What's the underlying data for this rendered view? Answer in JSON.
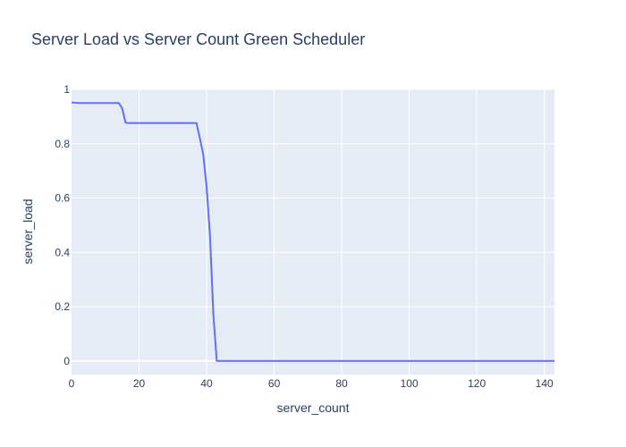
{
  "chart_data": {
    "type": "line",
    "title": "Server Load vs Server Count Green Scheduler",
    "xlabel": "server_count",
    "ylabel": "server_load",
    "xlim": [
      0,
      143
    ],
    "ylim": [
      -0.05,
      1.0
    ],
    "x_ticks": [
      0,
      20,
      40,
      60,
      80,
      100,
      120,
      140
    ],
    "x_tick_labels": [
      "0",
      "20",
      "40",
      "60",
      "80",
      "100",
      "120",
      "140"
    ],
    "y_ticks": [
      0,
      0.2,
      0.4,
      0.6,
      0.8,
      1
    ],
    "y_tick_labels": [
      "0",
      "0.2",
      "0.4",
      "0.6",
      "0.8",
      "1"
    ],
    "grid": true,
    "colors": {
      "plot_bg": "#e5ecf6",
      "grid": "#ffffff",
      "line": "#636efa",
      "text": "#2a3f5f"
    },
    "series": [
      {
        "x": [
          0,
          2,
          4,
          6,
          8,
          10,
          12,
          14,
          15,
          16,
          17,
          18,
          20,
          25,
          30,
          35,
          37,
          38,
          39,
          40,
          41,
          42,
          43,
          44,
          50,
          60,
          80,
          100,
          120,
          143
        ],
        "y": [
          0.952,
          0.95,
          0.95,
          0.95,
          0.95,
          0.95,
          0.95,
          0.95,
          0.93,
          0.877,
          0.876,
          0.876,
          0.876,
          0.876,
          0.876,
          0.876,
          0.876,
          0.82,
          0.76,
          0.64,
          0.46,
          0.17,
          0.0,
          0.0,
          0.0,
          0.0,
          0.0,
          0.0,
          0.0,
          0.0
        ]
      }
    ]
  }
}
